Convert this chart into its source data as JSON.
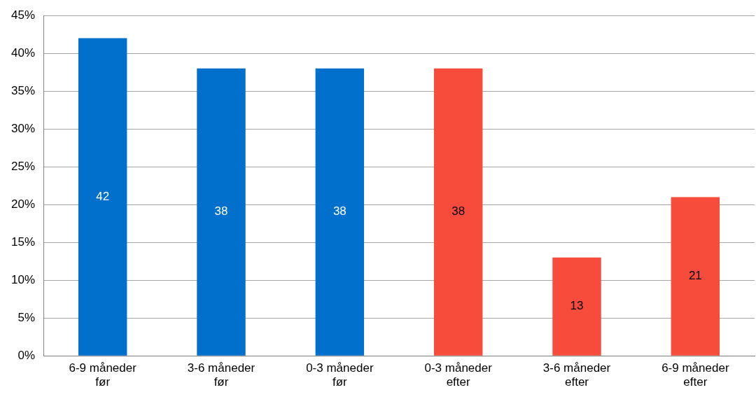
{
  "chart_data": {
    "type": "bar",
    "categories": [
      "6-9 måneder før",
      "3-6 måneder før",
      "0-3 måneder før",
      "0-3 måneder efter",
      "3-6 måneder efter",
      "6-9 måneder efter"
    ],
    "values": [
      42,
      38,
      38,
      38,
      13,
      21
    ],
    "colors": [
      "#0070cc",
      "#0070cc",
      "#0070cc",
      "#f74c3c",
      "#f74c3c",
      "#f74c3c"
    ],
    "ylim": [
      0,
      45
    ],
    "yticks": [
      {
        "value": 0,
        "label": "0%"
      },
      {
        "value": 5,
        "label": "5%"
      },
      {
        "value": 10,
        "label": "10%"
      },
      {
        "value": 15,
        "label": "15%"
      },
      {
        "value": 20,
        "label": "20%"
      },
      {
        "value": 25,
        "label": "25%"
      },
      {
        "value": 30,
        "label": "30%"
      },
      {
        "value": 35,
        "label": "35%"
      },
      {
        "value": 40,
        "label": "40%"
      },
      {
        "value": 45,
        "label": "45%"
      }
    ],
    "grid": "y",
    "data_labels": true
  }
}
